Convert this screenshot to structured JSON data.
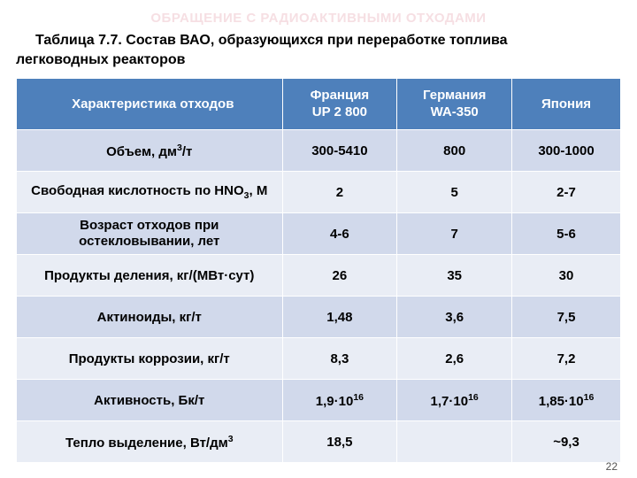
{
  "running_header": "ОБРАЩЕНИЕ С РАДИОАКТИВНЫМИ ОТХОДАМИ",
  "caption_line1": "Таблица 7.7. Состав ВАО, образующихся при переработке топлива",
  "caption_line2": "легководных реакторов",
  "page_number": "22",
  "table": {
    "col_widths": [
      "44%",
      "19%",
      "19%",
      "18%"
    ],
    "header_bg": "#4e80bb",
    "header_fg": "#ffffff",
    "band_a_bg": "#d1d9eb",
    "band_b_bg": "#e9edf5",
    "columns": {
      "c0": "Характеристика отходов",
      "c1_line1": "Франция",
      "c1_line2": "UP 2 800",
      "c2_line1": "Германия",
      "c2_line2": "WA-350",
      "c3": "Япония"
    },
    "rows": {
      "r0": {
        "label_html": "Объем, дм<span class=\"sup\">3</span>/т",
        "france": "300-5410",
        "germany": "800",
        "japan": "300-1000"
      },
      "r1": {
        "label_html": "Свободная кислотность по HNO<span class=\"sub\">3</span>, М",
        "france": "2",
        "germany": "5",
        "japan": "2-7"
      },
      "r2": {
        "label_html": "<div class=\"two-line\">Возраст отходов при<br>остекловывании, лет</div>",
        "france": "4-6",
        "germany": "7",
        "japan": "5-6"
      },
      "r3": {
        "label_html": "Продукты деления, кг/(МВт·сут)",
        "france": "26",
        "germany": "35",
        "japan": "30"
      },
      "r4": {
        "label_html": "Актиноиды, кг/т",
        "france": "1,48",
        "germany": "3,6",
        "japan": "7,5"
      },
      "r5": {
        "label_html": "Продукты коррозии, кг/т",
        "france": "8,3",
        "germany": "2,6",
        "japan": "7,2"
      },
      "r6": {
        "label_html": "Активность, Бк/т",
        "france_html": "1,9·10<span class=\"sup\">16</span>",
        "germany_html": "1,7·10<span class=\"sup\">16</span>",
        "japan_html": "1,85·10<span class=\"sup\">16</span>"
      },
      "r7": {
        "label_html": "Тепло выделение, Вт/дм<span class=\"sup\">3</span>",
        "france": "18,5",
        "germany": "",
        "japan": "~9,3"
      }
    }
  }
}
